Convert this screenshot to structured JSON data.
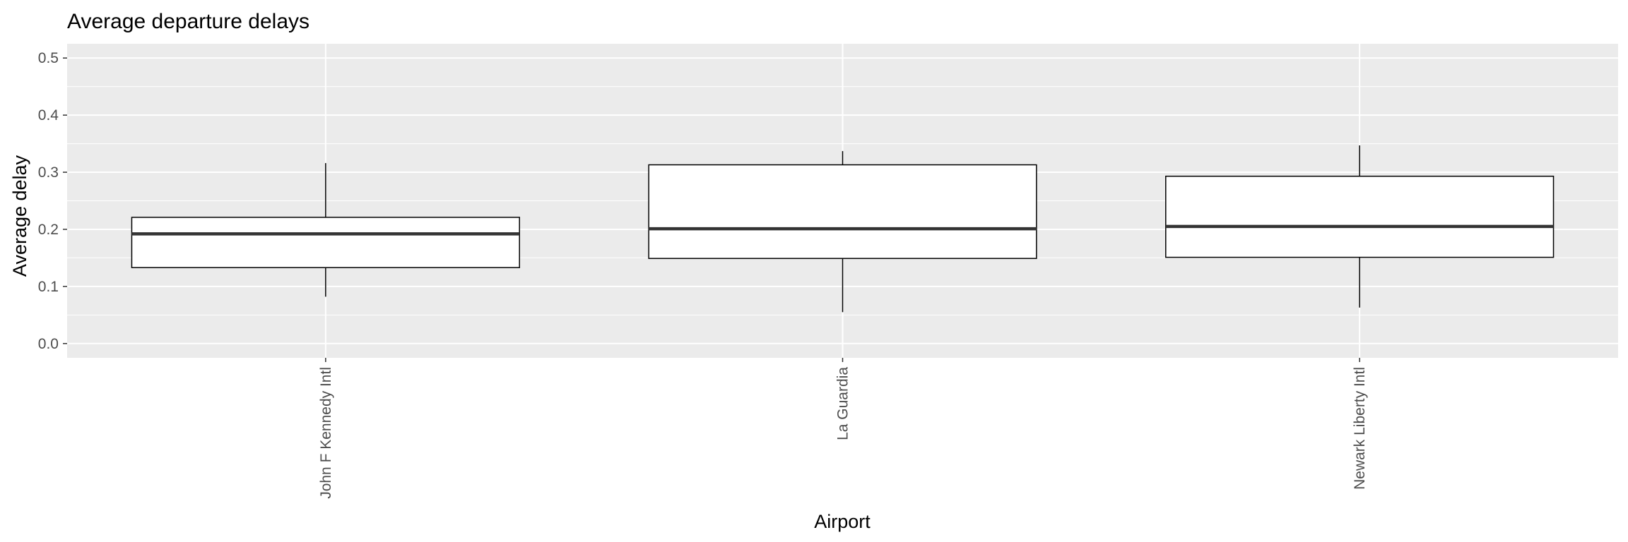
{
  "chart_data": {
    "type": "boxplot",
    "title": "Average departure delays",
    "xlabel": "Airport",
    "ylabel": "Average delay",
    "ylim": [
      -0.025,
      0.525
    ],
    "yticks": [
      0.0,
      0.1,
      0.2,
      0.3,
      0.4,
      0.5
    ],
    "ytick_labels": [
      "0.0",
      "0.1",
      "0.2",
      "0.3",
      "0.4",
      "0.5"
    ],
    "categories": [
      "John F Kennedy Intl",
      "La Guardia",
      "Newark Liberty Intl"
    ],
    "boxes": [
      {
        "category": "John F Kennedy Intl",
        "min": 0.082,
        "q1": 0.133,
        "median": 0.192,
        "q3": 0.221,
        "max": 0.316
      },
      {
        "category": "La Guardia",
        "min": 0.055,
        "q1": 0.149,
        "median": 0.201,
        "q3": 0.313,
        "max": 0.337
      },
      {
        "category": "Newark Liberty Intl",
        "min": 0.063,
        "q1": 0.151,
        "median": 0.205,
        "q3": 0.293,
        "max": 0.347
      }
    ],
    "grid": true,
    "legend": "none",
    "colors": {
      "panel_background": "#ebebeb",
      "grid": "#ffffff",
      "box_fill": "#ffffff",
      "box_stroke": "#000000",
      "median": "#333333",
      "tick_label": "#4d4d4d"
    }
  }
}
